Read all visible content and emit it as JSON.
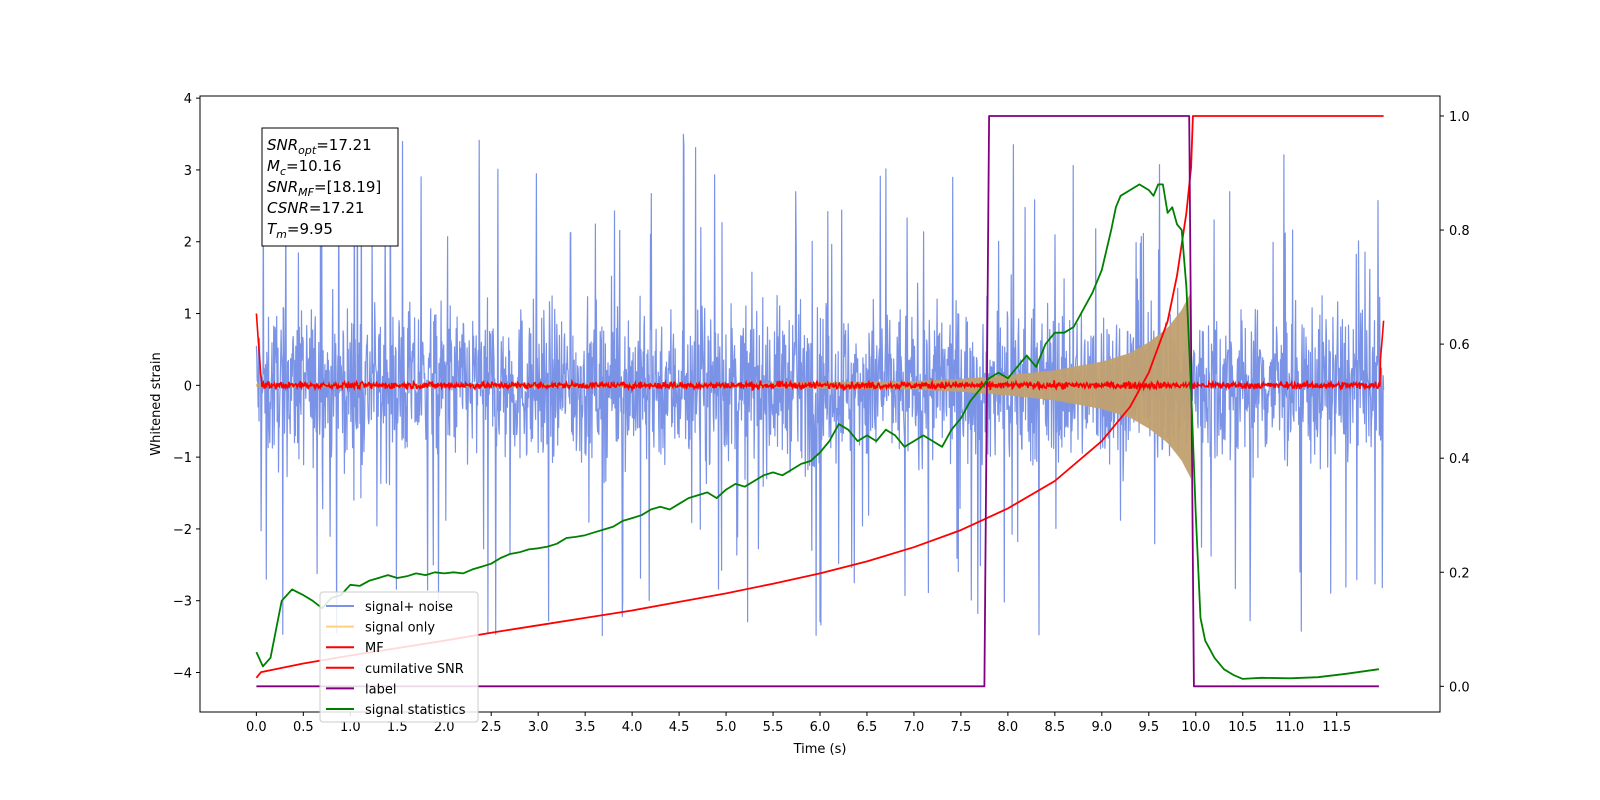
{
  "chart_data": {
    "type": "line",
    "xlabel": "Time (s)",
    "ylabel": "Whitened strain",
    "xlim": [
      -0.6,
      12.6
    ],
    "ylim": [
      -4.55,
      4.03
    ],
    "ylim_right": [
      -0.045,
      1.035
    ],
    "x_ticks": [
      "0.0",
      "0.5",
      "1.0",
      "1.5",
      "2.0",
      "2.5",
      "3.0",
      "3.5",
      "4.0",
      "4.5",
      "5.0",
      "5.5",
      "6.0",
      "6.5",
      "7.0",
      "7.5",
      "8.0",
      "8.5",
      "9.0",
      "9.5",
      "10.0",
      "10.5",
      "11.0",
      "11.5"
    ],
    "y_ticks": [
      "−4",
      "−3",
      "−2",
      "−1",
      "0",
      "1",
      "2",
      "3",
      "4"
    ],
    "y_ticks_right": [
      "0.0",
      "0.2",
      "0.4",
      "0.6",
      "0.8",
      "1.0"
    ],
    "info_box": [
      {
        "base": "SNR",
        "sub": "opt",
        "rest": "=17.21"
      },
      {
        "base": "M",
        "sub": "c",
        "rest": "=10.16"
      },
      {
        "base": "SNR",
        "sub": "MF",
        "rest": "=[18.19]"
      },
      {
        "base": "CSNR",
        "sub": "",
        "rest": "=17.21"
      },
      {
        "base": "T",
        "sub": "m",
        "rest": "=9.95"
      }
    ],
    "legend": [
      {
        "label": "signal+ noise",
        "color": "#7b93e6"
      },
      {
        "label": "signal only",
        "color": "#ffd27a"
      },
      {
        "label": "MF",
        "color": "#ff0000"
      },
      {
        "label": "cumilative SNR",
        "color": "#ff0000"
      },
      {
        "label": "label",
        "color": "#800080"
      },
      {
        "label": "signal statistics",
        "color": "#008000"
      }
    ],
    "legend_position": "lower-left",
    "series": [
      {
        "name": "signal+ noise",
        "axis": "left",
        "style": "noise",
        "x_range": [
          0,
          12.0
        ],
        "envelope_typical": 1.7,
        "envelope_peak": 3.6
      },
      {
        "name": "signal only",
        "axis": "left",
        "style": "chirp",
        "x_range": [
          0,
          9.95
        ],
        "envelope": [
          [
            0,
            0.02
          ],
          [
            5,
            0.03
          ],
          [
            7,
            0.06
          ],
          [
            7.5,
            0.09
          ],
          [
            8,
            0.14
          ],
          [
            8.5,
            0.21
          ],
          [
            9,
            0.33
          ],
          [
            9.3,
            0.45
          ],
          [
            9.5,
            0.6
          ],
          [
            9.7,
            0.8
          ],
          [
            9.85,
            1.05
          ],
          [
            9.95,
            1.3
          ]
        ]
      },
      {
        "name": "MF",
        "axis": "left",
        "style": "mf",
        "x_range": [
          0,
          12.0
        ],
        "baseline": 0.0,
        "noise_amp": 0.07,
        "edges": [
          [
            0,
            1.0
          ],
          [
            0.05,
            0.1
          ],
          [
            11.95,
            0.1
          ],
          [
            12.0,
            0.9
          ]
        ]
      },
      {
        "name": "cumilative SNR",
        "axis": "right",
        "x": [
          0,
          0.05,
          0.5,
          1,
          1.5,
          2,
          2.5,
          3,
          3.5,
          4,
          4.5,
          5,
          5.5,
          6,
          6.5,
          7,
          7.5,
          8,
          8.5,
          9,
          9.3,
          9.5,
          9.7,
          9.8,
          9.9,
          9.95,
          9.97,
          10.0,
          12.0
        ],
        "y": [
          0.015,
          0.025,
          0.04,
          0.054,
          0.067,
          0.08,
          0.094,
          0.107,
          0.12,
          0.133,
          0.148,
          0.163,
          0.18,
          0.198,
          0.219,
          0.244,
          0.274,
          0.312,
          0.36,
          0.43,
          0.49,
          0.55,
          0.64,
          0.72,
          0.83,
          0.91,
          1.0,
          1.0,
          1.0
        ]
      },
      {
        "name": "label",
        "axis": "right",
        "x": [
          0,
          7.75,
          7.8,
          9.93,
          9.98,
          11.95
        ],
        "y": [
          0,
          0,
          1,
          1,
          0,
          0
        ]
      },
      {
        "name": "signal statistics",
        "axis": "right",
        "x": [
          0,
          0.07,
          0.15,
          0.27,
          0.38,
          0.5,
          0.6,
          0.7,
          0.8,
          0.9,
          1.0,
          1.1,
          1.2,
          1.3,
          1.4,
          1.5,
          1.6,
          1.7,
          1.8,
          1.9,
          2.0,
          2.1,
          2.2,
          2.3,
          2.4,
          2.5,
          2.6,
          2.7,
          2.8,
          2.9,
          3.0,
          3.1,
          3.2,
          3.3,
          3.4,
          3.5,
          3.6,
          3.7,
          3.8,
          3.9,
          4.0,
          4.1,
          4.2,
          4.3,
          4.4,
          4.5,
          4.6,
          4.7,
          4.8,
          4.9,
          5.0,
          5.1,
          5.2,
          5.3,
          5.4,
          5.5,
          5.6,
          5.7,
          5.8,
          5.9,
          6.0,
          6.1,
          6.2,
          6.3,
          6.4,
          6.5,
          6.6,
          6.7,
          6.8,
          6.9,
          7.0,
          7.1,
          7.2,
          7.3,
          7.4,
          7.5,
          7.6,
          7.7,
          7.8,
          7.9,
          8.0,
          8.1,
          8.2,
          8.3,
          8.4,
          8.5,
          8.6,
          8.7,
          8.8,
          8.9,
          9.0,
          9.1,
          9.15,
          9.2,
          9.3,
          9.4,
          9.5,
          9.55,
          9.6,
          9.65,
          9.7,
          9.75,
          9.8,
          9.85,
          9.9,
          9.95,
          10.0,
          10.05,
          10.1,
          10.2,
          10.3,
          10.4,
          10.5,
          10.7,
          11.0,
          11.3,
          11.6,
          11.95
        ],
        "y": [
          0.06,
          0.035,
          0.05,
          0.15,
          0.17,
          0.16,
          0.15,
          0.137,
          0.155,
          0.16,
          0.178,
          0.176,
          0.185,
          0.19,
          0.195,
          0.19,
          0.193,
          0.198,
          0.195,
          0.2,
          0.198,
          0.2,
          0.198,
          0.205,
          0.21,
          0.215,
          0.225,
          0.232,
          0.235,
          0.24,
          0.242,
          0.245,
          0.25,
          0.26,
          0.262,
          0.265,
          0.27,
          0.275,
          0.28,
          0.29,
          0.295,
          0.3,
          0.31,
          0.315,
          0.31,
          0.32,
          0.33,
          0.335,
          0.34,
          0.33,
          0.345,
          0.355,
          0.35,
          0.36,
          0.37,
          0.375,
          0.37,
          0.38,
          0.39,
          0.395,
          0.41,
          0.43,
          0.46,
          0.45,
          0.43,
          0.44,
          0.43,
          0.45,
          0.44,
          0.42,
          0.43,
          0.44,
          0.43,
          0.42,
          0.45,
          0.47,
          0.5,
          0.52,
          0.54,
          0.55,
          0.54,
          0.56,
          0.58,
          0.56,
          0.6,
          0.62,
          0.62,
          0.63,
          0.66,
          0.69,
          0.73,
          0.8,
          0.84,
          0.86,
          0.87,
          0.88,
          0.87,
          0.86,
          0.88,
          0.88,
          0.83,
          0.84,
          0.81,
          0.8,
          0.7,
          0.52,
          0.3,
          0.12,
          0.08,
          0.05,
          0.03,
          0.02,
          0.013,
          0.015,
          0.014,
          0.016,
          0.022,
          0.03
        ]
      }
    ]
  }
}
